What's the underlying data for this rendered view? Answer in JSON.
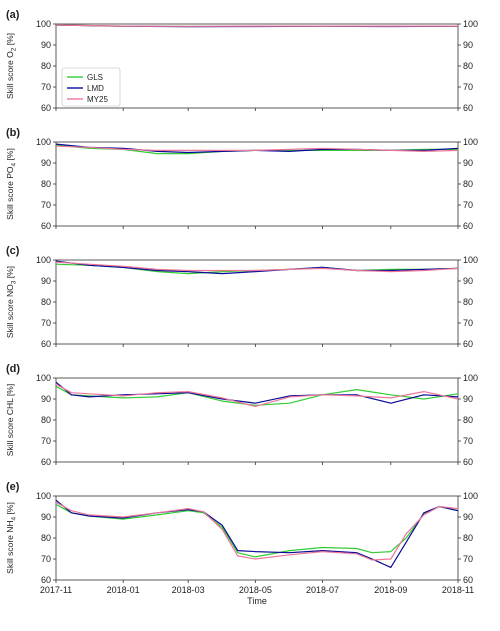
{
  "chart_data": {
    "type": "line",
    "xlabel": "Time",
    "x_ticks": [
      "2017-11",
      "2018-01",
      "2018-03",
      "2018-05",
      "2018-07",
      "2018-09",
      "2018-11"
    ],
    "x_range": [
      "2017-11",
      "2018-11"
    ],
    "legend": {
      "placement": "inside-left of panel (a)",
      "entries": [
        {
          "name": "GLS",
          "color": "#33cc33"
        },
        {
          "name": "LMD",
          "color": "#0a0a99"
        },
        {
          "name": "MY25",
          "color": "#ee7799"
        }
      ]
    },
    "grid": false,
    "panels": [
      {
        "label": "(a)",
        "ylabel": "Skill score O",
        "ylabel_sub": "2",
        "ylabel_unit": "[%]",
        "ylim": [
          60,
          100
        ],
        "yticks": [
          60,
          70,
          80,
          90,
          100
        ],
        "x": [
          "2017-11",
          "2018-01",
          "2018-03",
          "2018-05",
          "2018-07",
          "2018-09",
          "2018-11"
        ],
        "series": [
          {
            "name": "GLS",
            "values": [
              99.5,
              99,
              98.8,
              98.9,
              99,
              98.9,
              99
            ]
          },
          {
            "name": "LMD",
            "values": [
              99.5,
              98.9,
              98.7,
              98.8,
              98.9,
              98.8,
              98.9
            ]
          },
          {
            "name": "MY25",
            "values": [
              99.5,
              99,
              98.9,
              99,
              99,
              99,
              99
            ]
          }
        ]
      },
      {
        "label": "(b)",
        "ylabel": "Skill score PO",
        "ylabel_sub": "4",
        "ylabel_unit": "[%]",
        "ylim": [
          60,
          100
        ],
        "yticks": [
          60,
          70,
          80,
          90,
          100
        ],
        "x": [
          "2017-11",
          "2017-12",
          "2018-01",
          "2018-02",
          "2018-03",
          "2018-04",
          "2018-05",
          "2018-06",
          "2018-07",
          "2018-08",
          "2018-09",
          "2018-10",
          "2018-11"
        ],
        "series": [
          {
            "name": "GLS",
            "values": [
              98.5,
              97,
              96.5,
              94.5,
              94.5,
              95.5,
              96,
              96,
              96,
              96,
              96,
              96.5,
              96.5
            ]
          },
          {
            "name": "LMD",
            "values": [
              99,
              97.5,
              97,
              95.5,
              95,
              95.5,
              96,
              95.5,
              96.5,
              96.5,
              96,
              96,
              97
            ]
          },
          {
            "name": "MY25",
            "values": [
              98,
              97.5,
              96.5,
              96,
              96,
              96,
              96,
              96.5,
              97,
              96.5,
              96,
              95.5,
              96
            ]
          }
        ]
      },
      {
        "label": "(c)",
        "ylabel": "Skill score NO",
        "ylabel_sub": "3",
        "ylabel_unit": "[%]",
        "ylim": [
          60,
          100
        ],
        "yticks": [
          60,
          70,
          80,
          90,
          100
        ],
        "x": [
          "2017-11",
          "2017-12",
          "2018-01",
          "2018-02",
          "2018-03",
          "2018-04",
          "2018-05",
          "2018-06",
          "2018-07",
          "2018-08",
          "2018-09",
          "2018-10",
          "2018-11"
        ],
        "series": [
          {
            "name": "GLS",
            "values": [
              98,
              97.5,
              96.5,
              94.5,
              93.5,
              94.5,
              95,
              95.5,
              96.5,
              95,
              95.5,
              95.5,
              96
            ]
          },
          {
            "name": "LMD",
            "values": [
              99.5,
              97.5,
              96.5,
              95,
              94.5,
              93.5,
              94.5,
              95.5,
              96.5,
              95,
              95,
              95.5,
              96
            ]
          },
          {
            "name": "MY25",
            "values": [
              99,
              98,
              97,
              95.5,
              95,
              95,
              95,
              95.5,
              96,
              95,
              94.5,
              95,
              96
            ]
          }
        ]
      },
      {
        "label": "(d)",
        "ylabel": "Skill score CHL",
        "ylabel_sub": "",
        "ylabel_unit": "[%]",
        "ylim": [
          60,
          100
        ],
        "yticks": [
          60,
          70,
          80,
          90,
          100
        ],
        "x": [
          "2017-11",
          "2017-11-15",
          "2017-12",
          "2018-01",
          "2018-02",
          "2018-03",
          "2018-04",
          "2018-05",
          "2018-06",
          "2018-07",
          "2018-08",
          "2018-09",
          "2018-10",
          "2018-11"
        ],
        "series": [
          {
            "name": "GLS",
            "values": [
              96,
              92,
              91.5,
              90.5,
              91,
              93,
              89,
              87,
              88,
              92,
              94.5,
              92,
              90,
              92.5
            ]
          },
          {
            "name": "LMD",
            "values": [
              98,
              92,
              91,
              92,
              92.5,
              93,
              90,
              88,
              91.5,
              92,
              92,
              88,
              92,
              91
            ]
          },
          {
            "name": "MY25",
            "values": [
              97,
              93,
              92.5,
              91.5,
              93,
              93.5,
              90.5,
              86.5,
              91,
              92,
              91.5,
              90.5,
              93.5,
              90
            ]
          }
        ]
      },
      {
        "label": "(e)",
        "ylabel": "Skill score NH",
        "ylabel_sub": "4",
        "ylabel_unit": "[%]",
        "ylim": [
          60,
          100
        ],
        "yticks": [
          60,
          70,
          80,
          90,
          100
        ],
        "x": [
          "2017-11",
          "2017-11-15",
          "2017-12",
          "2018-01",
          "2018-02",
          "2018-03",
          "2018-03-15",
          "2018-04",
          "2018-04-15",
          "2018-05",
          "2018-06",
          "2018-07",
          "2018-08",
          "2018-08-15",
          "2018-09",
          "2018-09-15",
          "2018-10",
          "2018-10-15",
          "2018-11"
        ],
        "series": [
          {
            "name": "GLS",
            "values": [
              96,
              92,
              90.5,
              89,
              91,
              93,
              92,
              85,
              73,
              71,
              74,
              75.5,
              75,
              73,
              73.5,
              80,
              91.5,
              95,
              93
            ]
          },
          {
            "name": "LMD",
            "values": [
              98,
              92,
              90.5,
              89.5,
              92,
              93.5,
              92.5,
              86,
              74,
              73.5,
              73,
              74,
              73,
              70,
              66,
              78,
              92,
              95,
              93
            ]
          },
          {
            "name": "MY25",
            "values": [
              97,
              93,
              91,
              90,
              92,
              94,
              92.5,
              84,
              71.5,
              70,
              72,
              73.5,
              72.5,
              69.5,
              70,
              82,
              91,
              95,
              94
            ]
          }
        ]
      }
    ]
  }
}
